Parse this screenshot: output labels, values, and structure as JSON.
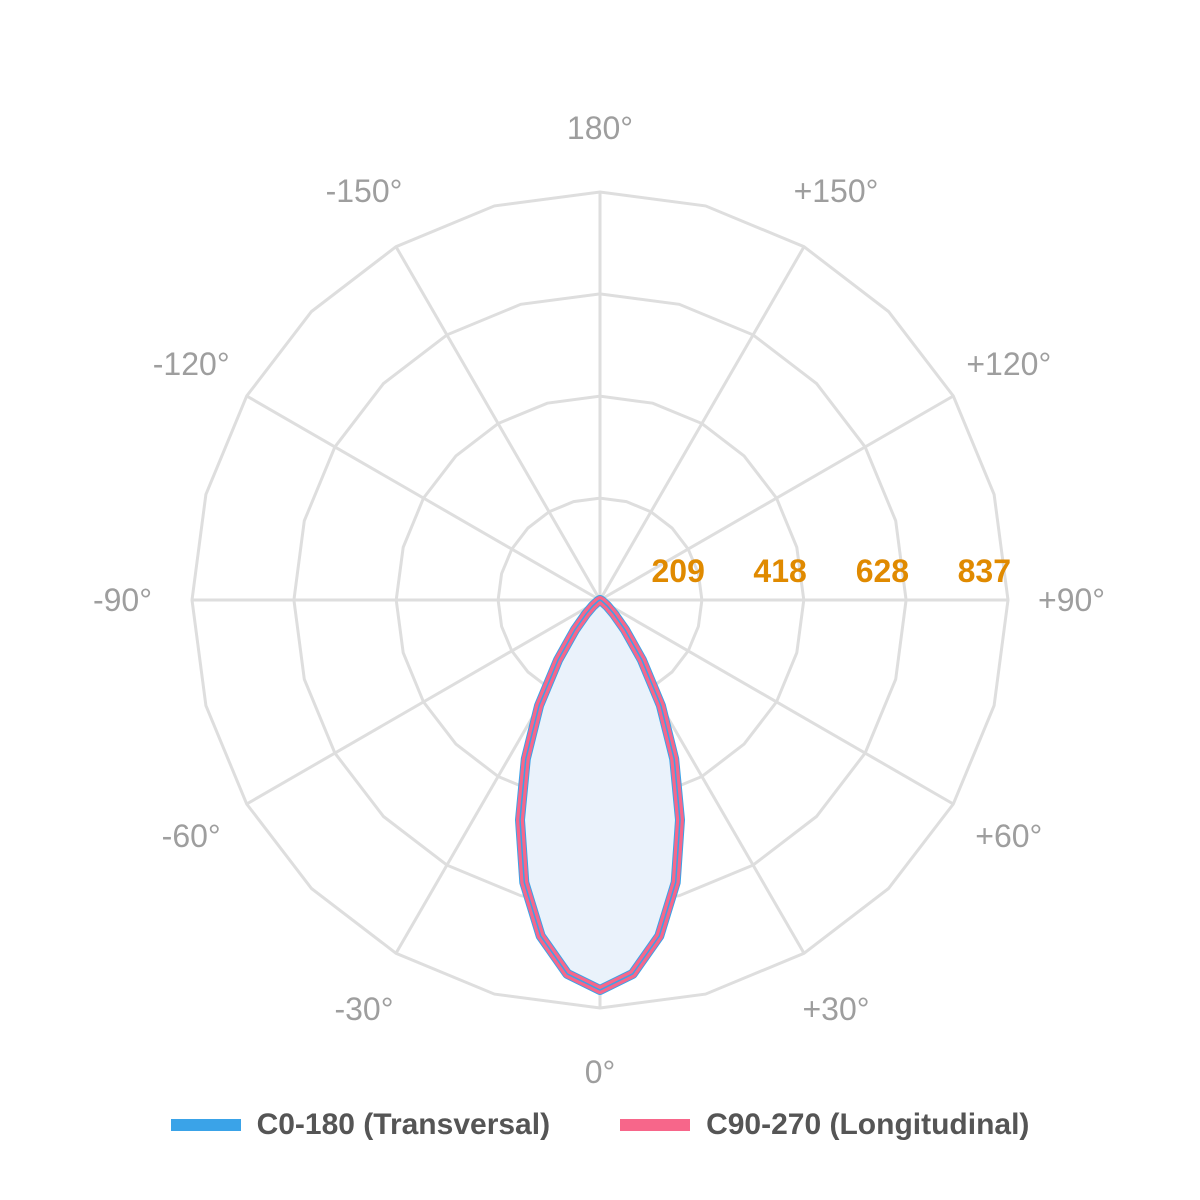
{
  "chart_data": {
    "type": "polar-line",
    "title": "",
    "angle_labels": [
      {
        "angle": 0,
        "label": "0°"
      },
      {
        "angle": 30,
        "label": "+30°"
      },
      {
        "angle": 60,
        "label": "+60°"
      },
      {
        "angle": 90,
        "label": "+90°"
      },
      {
        "angle": 120,
        "label": "+120°"
      },
      {
        "angle": 150,
        "label": "+150°"
      },
      {
        "angle": 180,
        "label": "180°"
      },
      {
        "angle": -150,
        "label": "-150°"
      },
      {
        "angle": -120,
        "label": "-120°"
      },
      {
        "angle": -90,
        "label": "-90°"
      },
      {
        "angle": -60,
        "label": "-60°"
      },
      {
        "angle": -30,
        "label": "-30°"
      }
    ],
    "radial_ticks": [
      209,
      418,
      628,
      837
    ],
    "radial_tick_labels": [
      "209",
      "418",
      "628",
      "837"
    ],
    "radial_max": 837,
    "radial_tick_color": "#e08a00",
    "grid": true,
    "legend_position": "bottom",
    "series": [
      {
        "name": "C0-180 (Transversal)",
        "color": "#3aa3e8",
        "fill": "#eaf2fb",
        "points": [
          [
            -90,
            0
          ],
          [
            -60,
            5
          ],
          [
            -50,
            20
          ],
          [
            -45,
            40
          ],
          [
            -40,
            80
          ],
          [
            -35,
            150
          ],
          [
            -30,
            250
          ],
          [
            -25,
            360
          ],
          [
            -20,
            480
          ],
          [
            -15,
            600
          ],
          [
            -10,
            700
          ],
          [
            -5,
            770
          ],
          [
            0,
            800
          ],
          [
            5,
            770
          ],
          [
            10,
            700
          ],
          [
            15,
            600
          ],
          [
            20,
            480
          ],
          [
            25,
            360
          ],
          [
            30,
            250
          ],
          [
            35,
            150
          ],
          [
            40,
            80
          ],
          [
            45,
            40
          ],
          [
            50,
            20
          ],
          [
            60,
            5
          ],
          [
            90,
            0
          ]
        ]
      },
      {
        "name": "C90-270 (Longitudinal)",
        "color": "#f7668a",
        "fill": "none",
        "points": [
          [
            -90,
            0
          ],
          [
            -60,
            5
          ],
          [
            -50,
            20
          ],
          [
            -45,
            40
          ],
          [
            -40,
            80
          ],
          [
            -35,
            150
          ],
          [
            -30,
            250
          ],
          [
            -25,
            360
          ],
          [
            -20,
            480
          ],
          [
            -15,
            600
          ],
          [
            -10,
            700
          ],
          [
            -5,
            770
          ],
          [
            0,
            800
          ],
          [
            5,
            770
          ],
          [
            10,
            700
          ],
          [
            15,
            600
          ],
          [
            20,
            480
          ],
          [
            25,
            360
          ],
          [
            30,
            250
          ],
          [
            35,
            150
          ],
          [
            40,
            80
          ],
          [
            45,
            40
          ],
          [
            50,
            20
          ],
          [
            60,
            5
          ],
          [
            90,
            0
          ]
        ]
      }
    ]
  }
}
